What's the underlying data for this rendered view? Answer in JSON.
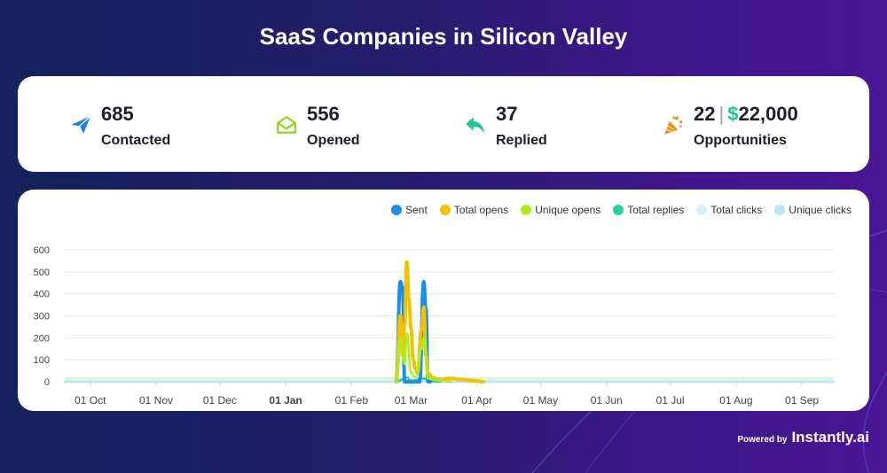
{
  "title": "SaaS Companies in Silicon Valley",
  "stats": {
    "contacted": {
      "value": "685",
      "label": "Contacted",
      "icon": "paper-plane-icon",
      "color": "#1a7ff0"
    },
    "opened": {
      "value": "556",
      "label": "Opened",
      "icon": "open-envelope-icon",
      "color": "#8fd11e"
    },
    "replied": {
      "value": "37",
      "label": "Replied",
      "icon": "reply-arrow-icon",
      "color": "#22c58b"
    },
    "opportunities": {
      "count": "22",
      "separator": "|",
      "currency": "$",
      "amount": "22,000",
      "label": "Opportunities",
      "icon": "party-popper-icon",
      "color": "#f08a24"
    }
  },
  "footer": {
    "powered_by": "Powered by",
    "brand": "Instantly.ai"
  },
  "chart_data": {
    "type": "line",
    "title": "",
    "xlabel": "",
    "ylabel": "",
    "ylim": [
      0,
      600
    ],
    "yticks": [
      0,
      100,
      200,
      300,
      400,
      500,
      600
    ],
    "x_tick_labels": [
      "01 Oct",
      "01 Nov",
      "01 Dec",
      "01 Jan",
      "01 Feb",
      "01 Mar",
      "01 Apr",
      "01 May",
      "01 Jun",
      "01 Jul",
      "01 Aug",
      "01 Sep"
    ],
    "x_tick_days": [
      0,
      31,
      61,
      92,
      123,
      151,
      182,
      212,
      243,
      273,
      304,
      335
    ],
    "x_range_days": [
      -12,
      350
    ],
    "legend": [
      {
        "name": "Sent",
        "color": "#1a8cf0"
      },
      {
        "name": "Total opens",
        "color": "#f2c200"
      },
      {
        "name": "Unique opens",
        "color": "#a8f020"
      },
      {
        "name": "Total replies",
        "color": "#22d39a"
      },
      {
        "name": "Total clicks",
        "color": "#d4eefb"
      },
      {
        "name": "Unique clicks",
        "color": "#b8e6f6"
      }
    ],
    "series": [
      {
        "name": "Sent",
        "color": "#1a8cf0",
        "points": [
          [
            144,
            0
          ],
          [
            146,
            455
          ],
          [
            147,
            430
          ],
          [
            148,
            0
          ],
          [
            155,
            0
          ],
          [
            157,
            455
          ],
          [
            158,
            330
          ],
          [
            159,
            0
          ],
          [
            160,
            0
          ]
        ]
      },
      {
        "name": "Total opens",
        "color": "#f2c200",
        "points": [
          [
            144,
            0
          ],
          [
            146,
            300
          ],
          [
            147,
            120
          ],
          [
            148,
            260
          ],
          [
            149,
            545
          ],
          [
            150,
            380
          ],
          [
            151,
            240
          ],
          [
            152,
            100
          ],
          [
            153,
            60
          ],
          [
            154,
            40
          ],
          [
            156,
            240
          ],
          [
            157,
            340
          ],
          [
            158,
            120
          ],
          [
            159,
            40
          ],
          [
            161,
            20
          ],
          [
            164,
            10
          ],
          [
            170,
            15
          ],
          [
            175,
            10
          ],
          [
            180,
            5
          ],
          [
            185,
            0
          ]
        ]
      },
      {
        "name": "Unique opens",
        "color": "#a8f020",
        "points": [
          [
            144,
            0
          ],
          [
            146,
            200
          ],
          [
            148,
            80
          ],
          [
            149,
            220
          ],
          [
            151,
            40
          ],
          [
            153,
            20
          ],
          [
            156,
            150
          ],
          [
            157,
            200
          ],
          [
            159,
            15
          ],
          [
            165,
            5
          ],
          [
            170,
            0
          ]
        ]
      },
      {
        "name": "Total replies",
        "color": "#22d39a",
        "points": [
          [
            144,
            0
          ],
          [
            147,
            10
          ],
          [
            149,
            20
          ],
          [
            151,
            5
          ],
          [
            157,
            15
          ],
          [
            160,
            3
          ],
          [
            165,
            0
          ]
        ]
      },
      {
        "name": "Total clicks",
        "color": "#d4eefb",
        "points": [
          [
            -12,
            0
          ],
          [
            350,
            0
          ]
        ]
      },
      {
        "name": "Unique clicks",
        "color": "#b8e6f6",
        "points": [
          [
            -12,
            0
          ],
          [
            350,
            0
          ]
        ]
      }
    ]
  }
}
